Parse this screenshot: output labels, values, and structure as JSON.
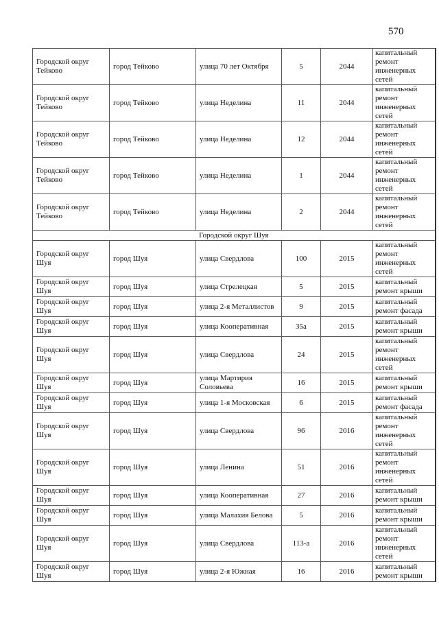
{
  "page_number": "570",
  "rows_before": [
    {
      "district": "Городской округ Тейково",
      "city": "город Тейково",
      "street": "улица 70 лет Октября",
      "house": "5",
      "year": "2044",
      "work": "капитальный ремонт инженерных сетей"
    },
    {
      "district": "Городской округ Тейково",
      "city": "город Тейково",
      "street": "улица Неделина",
      "house": "11",
      "year": "2044",
      "work": "капитальный ремонт инженерных сетей"
    },
    {
      "district": "Городской округ Тейково",
      "city": "город Тейково",
      "street": "улица Неделина",
      "house": "12",
      "year": "2044",
      "work": "капитальный ремонт инженерных сетей"
    },
    {
      "district": "Городской округ Тейково",
      "city": "город Тейково",
      "street": "улица Неделина",
      "house": "1",
      "year": "2044",
      "work": "капитальный ремонт инженерных сетей"
    },
    {
      "district": "Городской округ Тейково",
      "city": "город Тейково",
      "street": "улица Неделина",
      "house": "2",
      "year": "2044",
      "work": "капитальный ремонт инженерных сетей"
    }
  ],
  "section_title": "Городской округ Шуя",
  "rows_after": [
    {
      "district": "Городской округ Шуя",
      "city": "город Шуя",
      "street": "улица Свердлова",
      "house": "100",
      "year": "2015",
      "work": "капитальный ремонт инженерных сетей",
      "tall": true
    },
    {
      "district": "Городской округ Шуя",
      "city": "город Шуя",
      "street": "улица Стрелецкая",
      "house": "5",
      "year": "2015",
      "work": "капитальный ремонт крыши"
    },
    {
      "district": "Городской округ Шуя",
      "city": "город Шуя",
      "street": "улица 2-я Металлистов",
      "house": "9",
      "year": "2015",
      "work": "капитальный ремонт фасада"
    },
    {
      "district": "Городской округ Шуя",
      "city": "город Шуя",
      "street": "улица Кооперативная",
      "house": "35а",
      "year": "2015",
      "work": "капитальный ремонт крыши"
    },
    {
      "district": "Городской округ Шуя",
      "city": "город Шуя",
      "street": "улица Свердлова",
      "house": "24",
      "year": "2015",
      "work": "капитальный ремонт инженерных сетей",
      "tall": true
    },
    {
      "district": "Городской округ Шуя",
      "city": "город Шуя",
      "street": "улица Мартирия Соловьева",
      "house": "16",
      "year": "2015",
      "work": "капитальный ремонт крыши"
    },
    {
      "district": "Городской округ Шуя",
      "city": "город Шуя",
      "street": "улица 1-я Московская",
      "house": "6",
      "year": "2015",
      "work": "капитальный ремонт фасада"
    },
    {
      "district": "Городской округ Шуя",
      "city": "город Шуя",
      "street": "улица Свердлова",
      "house": "96",
      "year": "2016",
      "work": "капитальный ремонт инженерных сетей",
      "tall": true
    },
    {
      "district": "Городской округ Шуя",
      "city": "город Шуя",
      "street": "улица Ленина",
      "house": "51",
      "year": "2016",
      "work": "капитальный ремонт инженерных сетей",
      "tall": true
    },
    {
      "district": "Городской округ Шуя",
      "city": "город Шуя",
      "street": "улица Кооперативная",
      "house": "27",
      "year": "2016",
      "work": "капитальный ремонт крыши"
    },
    {
      "district": "Городской округ Шуя",
      "city": "город Шуя",
      "street": "улица Малахия Белова",
      "house": "5",
      "year": "2016",
      "work": "капитальный ремонт крыши"
    },
    {
      "district": "Городской округ Шуя",
      "city": "город Шуя",
      "street": "улица Свердлова",
      "house": "113-а",
      "year": "2016",
      "work": "капитальный ремонт инженерных сетей",
      "tall": true
    },
    {
      "district": "Городской округ Шуя",
      "city": "город Шуя",
      "street": "улица 2-я Южная",
      "house": "16",
      "year": "2016",
      "work": "капитальный ремонт крыши"
    }
  ]
}
